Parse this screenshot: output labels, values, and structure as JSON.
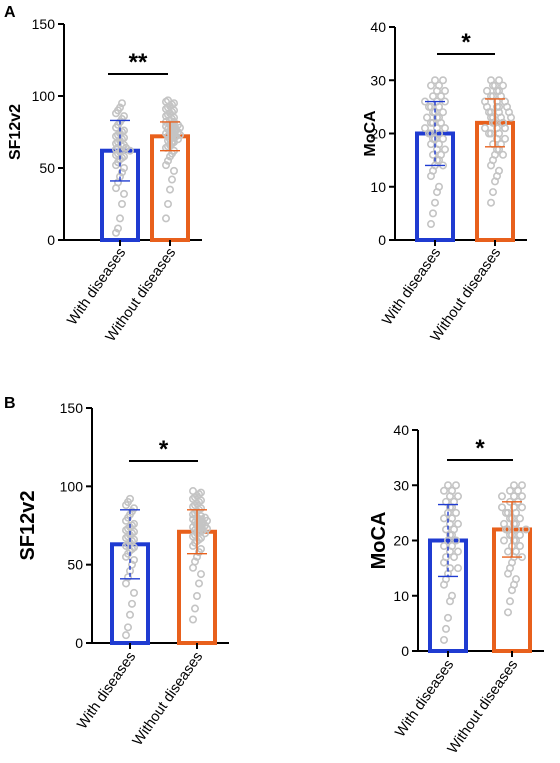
{
  "figure": {
    "panels": [
      {
        "letter": "A"
      },
      {
        "letter": "B"
      }
    ]
  },
  "colors": {
    "with_diseases": "#1f3bd1",
    "without_diseases": "#e8601c",
    "points": "#c4c4c4",
    "axis": "#000000"
  },
  "chart_data": [
    {
      "panel": "A",
      "type": "bar",
      "ylabel": "SF12v2",
      "categories": [
        "With diseases",
        "Without diseases"
      ],
      "values": [
        62,
        72
      ],
      "sd": [
        21,
        10
      ],
      "ylim": [
        0,
        150
      ],
      "yticks": [
        0,
        50,
        100,
        150
      ],
      "significance": "**",
      "scatter": [
        [
          5,
          8,
          15,
          25,
          32,
          36,
          40,
          44,
          47,
          50,
          52,
          54,
          56,
          57,
          58,
          59,
          60,
          61,
          62,
          62,
          63,
          64,
          64,
          65,
          66,
          67,
          68,
          69,
          70,
          71,
          72,
          73,
          74,
          75,
          76,
          78,
          80,
          82,
          84,
          86,
          88,
          90,
          92,
          95
        ],
        [
          15,
          25,
          35,
          42,
          48,
          52,
          55,
          58,
          60,
          62,
          64,
          65,
          66,
          67,
          68,
          68,
          69,
          70,
          70,
          71,
          71,
          72,
          72,
          73,
          73,
          74,
          74,
          75,
          75,
          76,
          76,
          77,
          77,
          78,
          78,
          79,
          79,
          80,
          80,
          81,
          82,
          82,
          83,
          84,
          85,
          86,
          87,
          88,
          89,
          90,
          91,
          92,
          93,
          94,
          95,
          96,
          97
        ]
      ]
    },
    {
      "panel": "A",
      "type": "bar",
      "ylabel": "MoCA",
      "categories": [
        "With diseases",
        "Without diseases"
      ],
      "values": [
        20,
        22
      ],
      "sd": [
        6,
        4.5
      ],
      "ylim": [
        0,
        40
      ],
      "yticks": [
        0,
        10,
        20,
        30,
        40
      ],
      "significance": "*",
      "scatter": [
        [
          3,
          5,
          7,
          9,
          10,
          12,
          13,
          14,
          14,
          15,
          15,
          16,
          16,
          17,
          17,
          18,
          18,
          19,
          19,
          19,
          20,
          20,
          20,
          21,
          21,
          21,
          22,
          22,
          22,
          23,
          23,
          23,
          24,
          24,
          24,
          25,
          25,
          25,
          26,
          26,
          26,
          27,
          27,
          28,
          28,
          29,
          29,
          30,
          30
        ],
        [
          7,
          9,
          11,
          12,
          13,
          14,
          15,
          16,
          16,
          17,
          17,
          18,
          18,
          19,
          19,
          20,
          20,
          20,
          21,
          21,
          21,
          21,
          22,
          22,
          22,
          22,
          23,
          23,
          23,
          23,
          24,
          24,
          24,
          24,
          25,
          25,
          25,
          25,
          26,
          26,
          26,
          27,
          27,
          27,
          28,
          28,
          28,
          29,
          29,
          29,
          30,
          30
        ]
      ]
    },
    {
      "panel": "B",
      "type": "bar",
      "ylabel": "SF12v2",
      "categories": [
        "With diseases",
        "Without diseases"
      ],
      "values": [
        63,
        71
      ],
      "sd": [
        22,
        14
      ],
      "ylim": [
        0,
        150
      ],
      "yticks": [
        0,
        50,
        100,
        150
      ],
      "significance": "*",
      "scatter": [
        [
          5,
          10,
          18,
          25,
          32,
          38,
          42,
          46,
          50,
          53,
          55,
          57,
          59,
          60,
          61,
          62,
          63,
          64,
          65,
          66,
          67,
          68,
          69,
          70,
          71,
          72,
          73,
          74,
          75,
          76,
          78,
          80,
          82,
          84,
          86,
          88,
          90,
          92
        ],
        [
          15,
          22,
          30,
          38,
          44,
          48,
          52,
          55,
          58,
          60,
          62,
          64,
          65,
          66,
          67,
          68,
          69,
          70,
          70,
          71,
          71,
          72,
          72,
          73,
          73,
          74,
          74,
          75,
          75,
          76,
          76,
          77,
          77,
          78,
          78,
          79,
          79,
          80,
          80,
          81,
          82,
          83,
          84,
          85,
          86,
          87,
          88,
          89,
          90,
          91,
          92,
          93,
          94,
          95,
          96,
          97
        ]
      ]
    },
    {
      "panel": "B",
      "type": "bar",
      "ylabel": "MoCA",
      "categories": [
        "With diseases",
        "Without diseases"
      ],
      "values": [
        20,
        22
      ],
      "sd": [
        6.5,
        5
      ],
      "ylim": [
        0,
        40
      ],
      "yticks": [
        0,
        10,
        20,
        30,
        40
      ],
      "significance": "*",
      "scatter": [
        [
          2,
          4,
          6,
          9,
          10,
          12,
          13,
          14,
          15,
          15,
          16,
          17,
          17,
          18,
          18,
          19,
          19,
          20,
          20,
          21,
          21,
          22,
          22,
          23,
          23,
          24,
          24,
          25,
          25,
          26,
          26,
          27,
          27,
          28,
          28,
          29,
          29,
          30,
          30
        ],
        [
          7,
          9,
          11,
          12,
          13,
          14,
          15,
          16,
          17,
          17,
          18,
          18,
          19,
          19,
          20,
          20,
          20,
          21,
          21,
          21,
          22,
          22,
          22,
          22,
          23,
          23,
          23,
          24,
          24,
          24,
          25,
          25,
          25,
          26,
          26,
          26,
          27,
          27,
          28,
          28,
          28,
          29,
          29,
          30,
          30
        ]
      ]
    }
  ]
}
